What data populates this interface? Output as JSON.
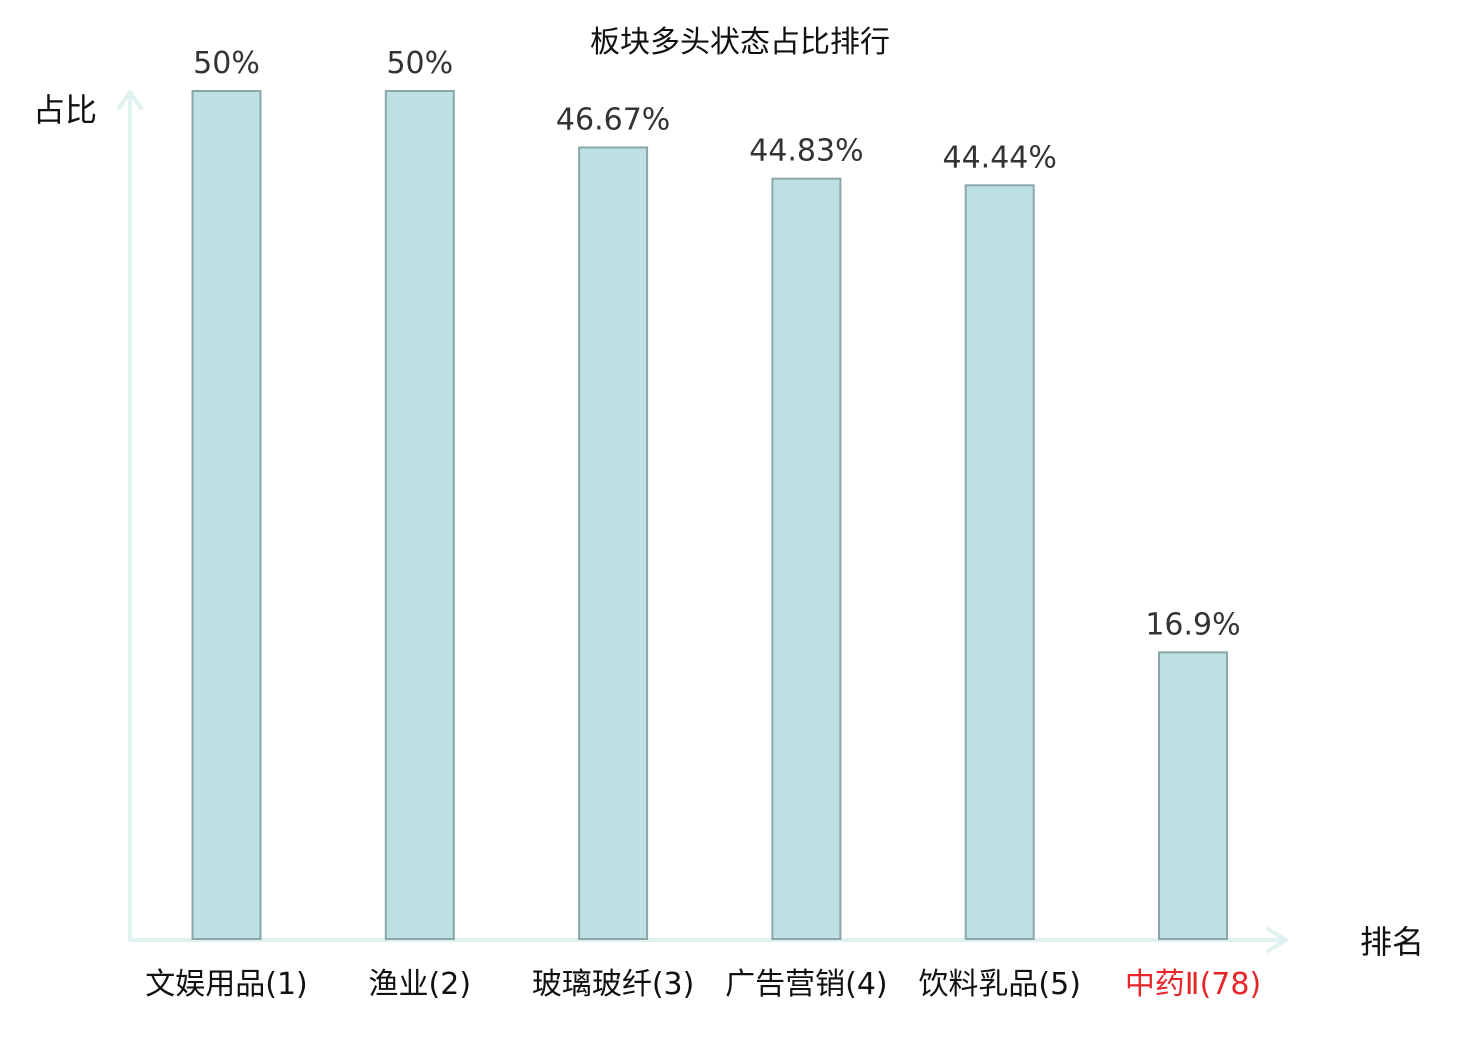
{
  "chart_data": {
    "type": "bar",
    "title": "板块多头状态占比排行",
    "ylabel": "占比",
    "xlabel": "排名",
    "categories": [
      "文娱用品(1)",
      "渔业(2)",
      "玻璃玻纤(3)",
      "广告营销(4)",
      "饮料乳品(5)",
      "中药Ⅱ(78)"
    ],
    "values": [
      50,
      50,
      46.67,
      44.83,
      44.44,
      16.9
    ],
    "value_labels": [
      "50%",
      "50%",
      "46.67%",
      "44.83%",
      "44.44%",
      "16.9%"
    ],
    "highlight_index": 5,
    "ylim": [
      0,
      50
    ],
    "grid": false,
    "colors": {
      "bar_fill": "#bde0e3",
      "bar_stroke": "#8aa6a8",
      "axis": "#dff2ef",
      "category_text": "#111111",
      "highlight_text": "#e8262a"
    }
  }
}
